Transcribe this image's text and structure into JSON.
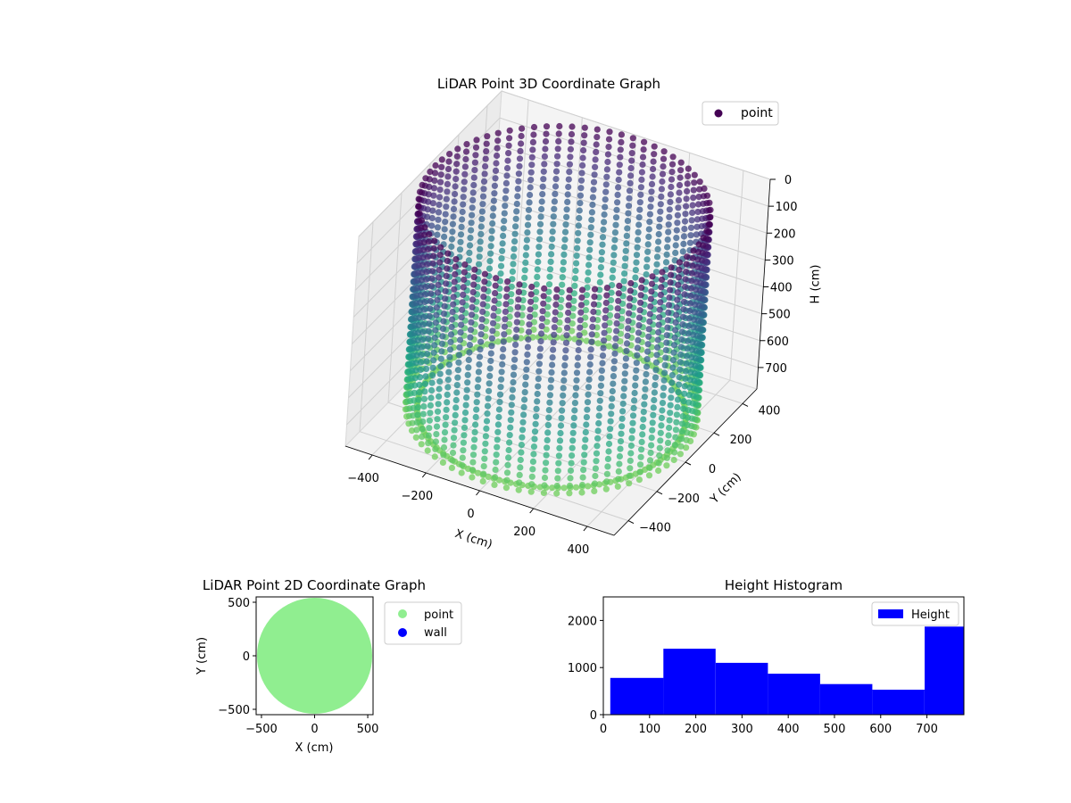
{
  "chart_data": [
    {
      "type": "scatter",
      "projection": "3d",
      "title": "LiDAR Point 3D Coordinate Graph",
      "xlabel": "X (cm)",
      "ylabel": "Y (cm)",
      "zlabel": "H (cm)",
      "x_ticks": [
        -400,
        -200,
        0,
        200,
        400
      ],
      "y_ticks": [
        -400,
        -200,
        0,
        200,
        400
      ],
      "z_ticks": [
        0,
        100,
        200,
        300,
        400,
        500,
        600,
        700
      ],
      "z_inverted": true,
      "xlim": [
        -500,
        500
      ],
      "ylim": [
        -500,
        500
      ],
      "zlim": [
        0,
        780
      ],
      "colormap": "viridis",
      "grid": true,
      "legend_position": "upper right",
      "series": [
        {
          "name": "point",
          "color": "#440154",
          "shape": "cylindrical wall of vertical scan lines",
          "radius": 480,
          "height_range": [
            0,
            780
          ],
          "scan_lines": 72
        }
      ]
    },
    {
      "type": "scatter",
      "title": "LiDAR Point 2D Coordinate Graph",
      "xlabel": "X (cm)",
      "ylabel": "Y (cm)",
      "x_ticks": [
        -500,
        0,
        500
      ],
      "y_ticks": [
        -500,
        0,
        500
      ],
      "xlim": [
        -550,
        550
      ],
      "ylim": [
        -550,
        550
      ],
      "legend_position": "outside right",
      "series": [
        {
          "name": "point",
          "color": "#90ee90",
          "shape": "filled disk",
          "radius": 500
        },
        {
          "name": "wall",
          "color": "#0000ff",
          "values": []
        }
      ]
    },
    {
      "type": "bar",
      "subtype": "histogram",
      "title": "Height Histogram",
      "x_ticks": [
        0,
        100,
        200,
        300,
        400,
        500,
        600,
        700
      ],
      "y_ticks": [
        0,
        1000,
        2000
      ],
      "xlim": [
        0,
        780
      ],
      "ylim": [
        0,
        2500
      ],
      "legend_position": "upper right",
      "series": [
        {
          "name": "Height",
          "color": "#0000ff",
          "bins": [
            [
              15,
              130,
              780
            ],
            [
              130,
              243,
              1400
            ],
            [
              243,
              356,
              1100
            ],
            [
              356,
              469,
              870
            ],
            [
              469,
              582,
              650
            ],
            [
              582,
              695,
              530
            ],
            [
              695,
              780,
              1870
            ]
          ]
        }
      ]
    }
  ]
}
